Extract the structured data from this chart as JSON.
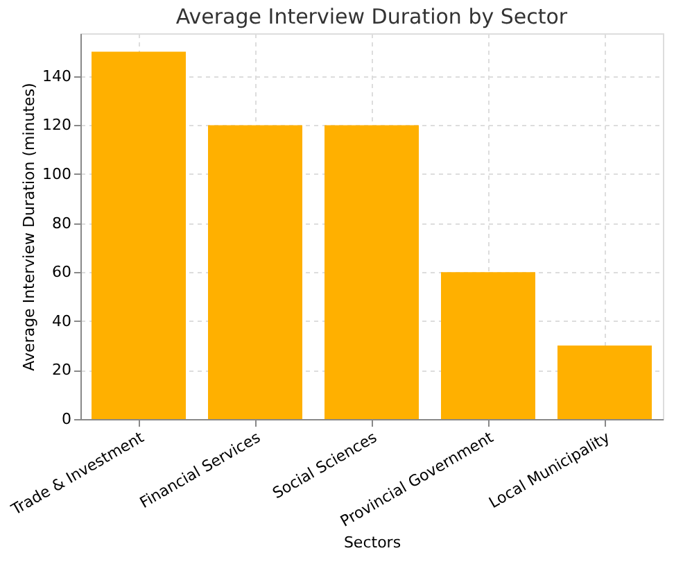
{
  "chart_data": {
    "type": "bar",
    "title": "Average Interview Duration by Sector",
    "xlabel": "Sectors",
    "ylabel": "Average Interview Duration (minutes)",
    "categories": [
      "Trade & Investment",
      "Financial Services",
      "Social Sciences",
      "Provincial Government",
      "Local Municipality"
    ],
    "values": [
      150,
      120,
      120,
      60,
      30
    ],
    "color": "#ffb000",
    "ylim": [
      0,
      157.5
    ],
    "yticks": [
      0,
      20,
      40,
      60,
      80,
      100,
      120,
      140
    ],
    "grid": true
  }
}
